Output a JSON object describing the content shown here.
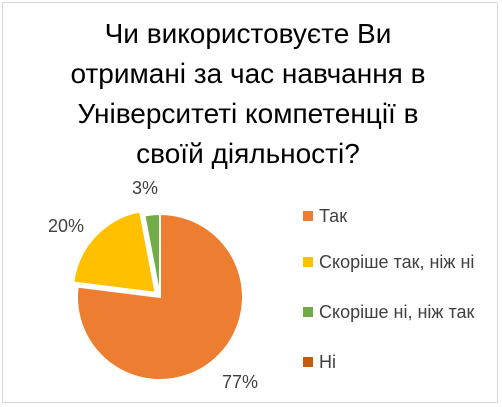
{
  "chart_data": {
    "type": "pie",
    "title": "Чи використовуєте Ви отримані за час навчання в Університеті компетенції в своїй діяльності?",
    "categories": [
      "Так",
      "Скоріше так, ніж ні",
      "Скоріше ні, ніж так",
      "Ні"
    ],
    "values": [
      77,
      20,
      3,
      0
    ],
    "labels": [
      "77%",
      "20%",
      "3%",
      ""
    ],
    "colors": [
      "#ED7D31",
      "#FFC000",
      "#70AD47",
      "#C55A11"
    ],
    "legend_position": "right",
    "exploded_slice": "Скоріше так, ніж ні"
  }
}
